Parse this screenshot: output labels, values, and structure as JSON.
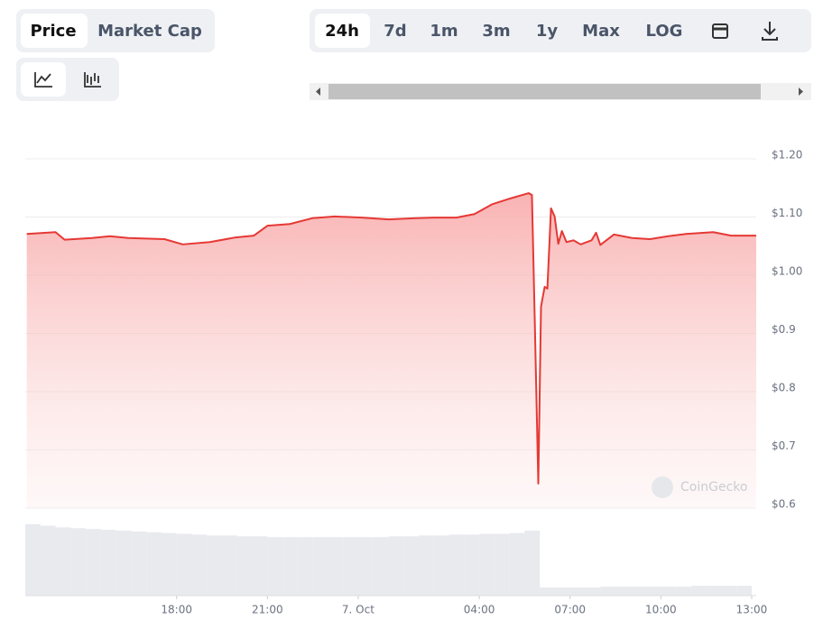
{
  "toolbar": {
    "metric_tabs": [
      "Price",
      "Market Cap"
    ],
    "range_tabs": [
      "24h",
      "7d",
      "1m",
      "3m",
      "1y",
      "Max",
      "LOG"
    ]
  },
  "chart_data": {
    "type": "line",
    "watermark": "CoinGecko",
    "color": "#e53935",
    "grid": true,
    "x": [
      -10.95,
      -10.0,
      -9.7,
      -8.8,
      -8.2,
      -7.6,
      -6.4,
      -5.8,
      -4.9,
      -4.05,
      -3.45,
      -3.0,
      -2.26,
      -1.52,
      -0.77,
      0.12,
      1.01,
      1.9,
      2.5,
      3.24,
      3.84,
      4.43,
      5.03,
      5.63,
      5.74,
      5.83,
      5.95,
      6.04,
      6.16,
      6.25,
      6.37,
      6.49,
      6.61,
      6.73,
      6.88,
      7.11,
      7.35,
      7.71,
      7.86,
      8.0,
      8.45,
      9.05,
      9.64,
      10.24,
      10.83,
      11.73,
      12.32,
      13.15
    ],
    "series": [
      {
        "name": "Price",
        "color": "#e53935",
        "values": [
          1.071,
          1.074,
          1.061,
          1.064,
          1.067,
          1.064,
          1.062,
          1.053,
          1.057,
          1.065,
          1.068,
          1.085,
          1.088,
          1.098,
          1.101,
          1.099,
          1.096,
          1.098,
          1.099,
          1.099,
          1.105,
          1.122,
          1.132,
          1.141,
          1.138,
          0.93,
          0.642,
          0.946,
          0.98,
          0.977,
          1.115,
          1.101,
          1.054,
          1.076,
          1.057,
          1.06,
          1.053,
          1.06,
          1.073,
          1.052,
          1.07,
          1.064,
          1.062,
          1.067,
          1.071,
          1.074,
          1.068,
          1.068
        ]
      }
    ],
    "xlim": [
      -11,
      13.15
    ],
    "xticks": [
      {
        "value": -6,
        "label": "18:00"
      },
      {
        "value": -3,
        "label": "21:00"
      },
      {
        "value": 0,
        "label": "7. Oct"
      },
      {
        "value": 4,
        "label": "04:00"
      },
      {
        "value": 7,
        "label": "07:00"
      },
      {
        "value": 10,
        "label": "10:00"
      },
      {
        "value": 13,
        "label": "13:00"
      }
    ],
    "ylim": [
      0.6,
      1.2
    ],
    "yticks": [
      {
        "value": 0.6,
        "label": "$0.6"
      },
      {
        "value": 0.7,
        "label": "$0.7"
      },
      {
        "value": 0.8,
        "label": "$0.8"
      },
      {
        "value": 0.9,
        "label": "$0.9"
      },
      {
        "value": 1.0,
        "label": "$1.00"
      },
      {
        "value": 1.1,
        "label": "$1.10"
      },
      {
        "value": 1.2,
        "label": "$1.20"
      }
    ],
    "volume": {
      "color": "#e8eaee",
      "ylim": [
        0,
        100
      ],
      "x": [
        -10.75,
        -10.25,
        -9.75,
        -9.25,
        -8.75,
        -8.25,
        -7.75,
        -7.25,
        -6.75,
        -6.25,
        -5.75,
        -5.25,
        -4.75,
        -4.25,
        -3.75,
        -3.25,
        -2.75,
        -2.25,
        -1.75,
        -1.25,
        -0.75,
        -0.25,
        0.25,
        0.75,
        1.25,
        1.75,
        2.25,
        2.75,
        3.25,
        3.75,
        4.25,
        4.75,
        5.25,
        5.75,
        6.25,
        6.75,
        7.25,
        7.75,
        8.25,
        8.75,
        9.25,
        9.75,
        10.25,
        10.75,
        11.25,
        11.75,
        12.25,
        12.75
      ],
      "values": [
        88,
        86,
        84,
        83,
        82,
        81,
        80,
        79,
        78,
        77,
        76,
        75,
        74,
        74,
        73,
        73,
        72,
        72,
        72,
        72,
        72,
        72,
        72,
        72,
        73,
        73,
        74,
        74,
        75,
        75,
        76,
        76,
        77,
        80,
        10,
        10,
        10,
        10,
        11,
        11,
        11,
        11,
        11,
        11,
        12,
        12,
        12,
        12
      ]
    }
  }
}
